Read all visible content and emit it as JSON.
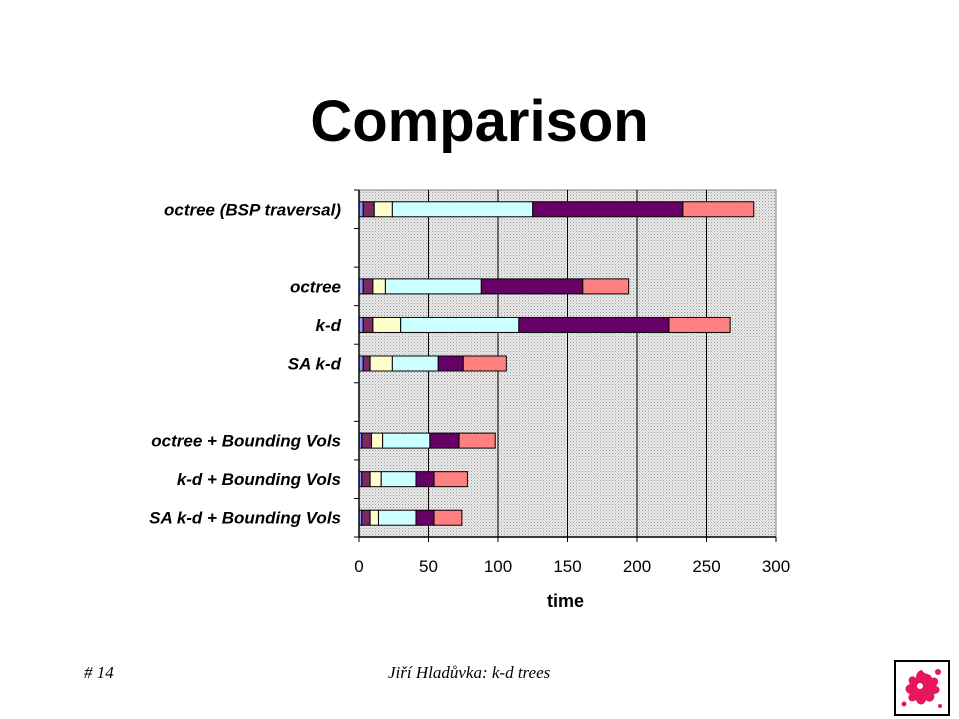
{
  "slide": {
    "title": "Comparison",
    "footer_number": "# 14",
    "footer_author": "Jiří Hladůvka: k-d trees"
  },
  "colors": {
    "plot_background": "#d8d8d8",
    "segments": [
      "#8899ff",
      "#7a2a5e",
      "#ffffcc",
      "#ccffff",
      "#660066",
      "#ff8080"
    ]
  },
  "chart_data": {
    "type": "bar",
    "orientation": "horizontal",
    "stacked": true,
    "categories": [
      "octree (BSP traversal)",
      "",
      "octree",
      "k-d",
      "SA k-d",
      "",
      "octree + Bounding Vols",
      "k-d + Bounding Vols",
      "SA k-d + Bounding Vols"
    ],
    "series": [
      {
        "values": [
          3,
          null,
          3,
          3,
          3,
          null,
          2,
          2,
          2
        ]
      },
      {
        "values": [
          8,
          null,
          7,
          7,
          5,
          null,
          7,
          6,
          6
        ]
      },
      {
        "values": [
          13,
          null,
          9,
          20,
          16,
          null,
          8,
          8,
          6
        ]
      },
      {
        "values": [
          101,
          null,
          69,
          85,
          33,
          null,
          34,
          25,
          27
        ]
      },
      {
        "values": [
          108,
          null,
          73,
          108,
          18,
          null,
          21,
          13,
          13
        ]
      },
      {
        "values": [
          51,
          null,
          33,
          44,
          31,
          null,
          26,
          24,
          20
        ]
      }
    ],
    "xlabel": "time",
    "ylabel": "",
    "xlim": [
      0,
      300
    ],
    "xticks": [
      "0",
      "50",
      "100",
      "150",
      "200",
      "250",
      "300"
    ],
    "grid": "vertical",
    "legend": "none"
  }
}
